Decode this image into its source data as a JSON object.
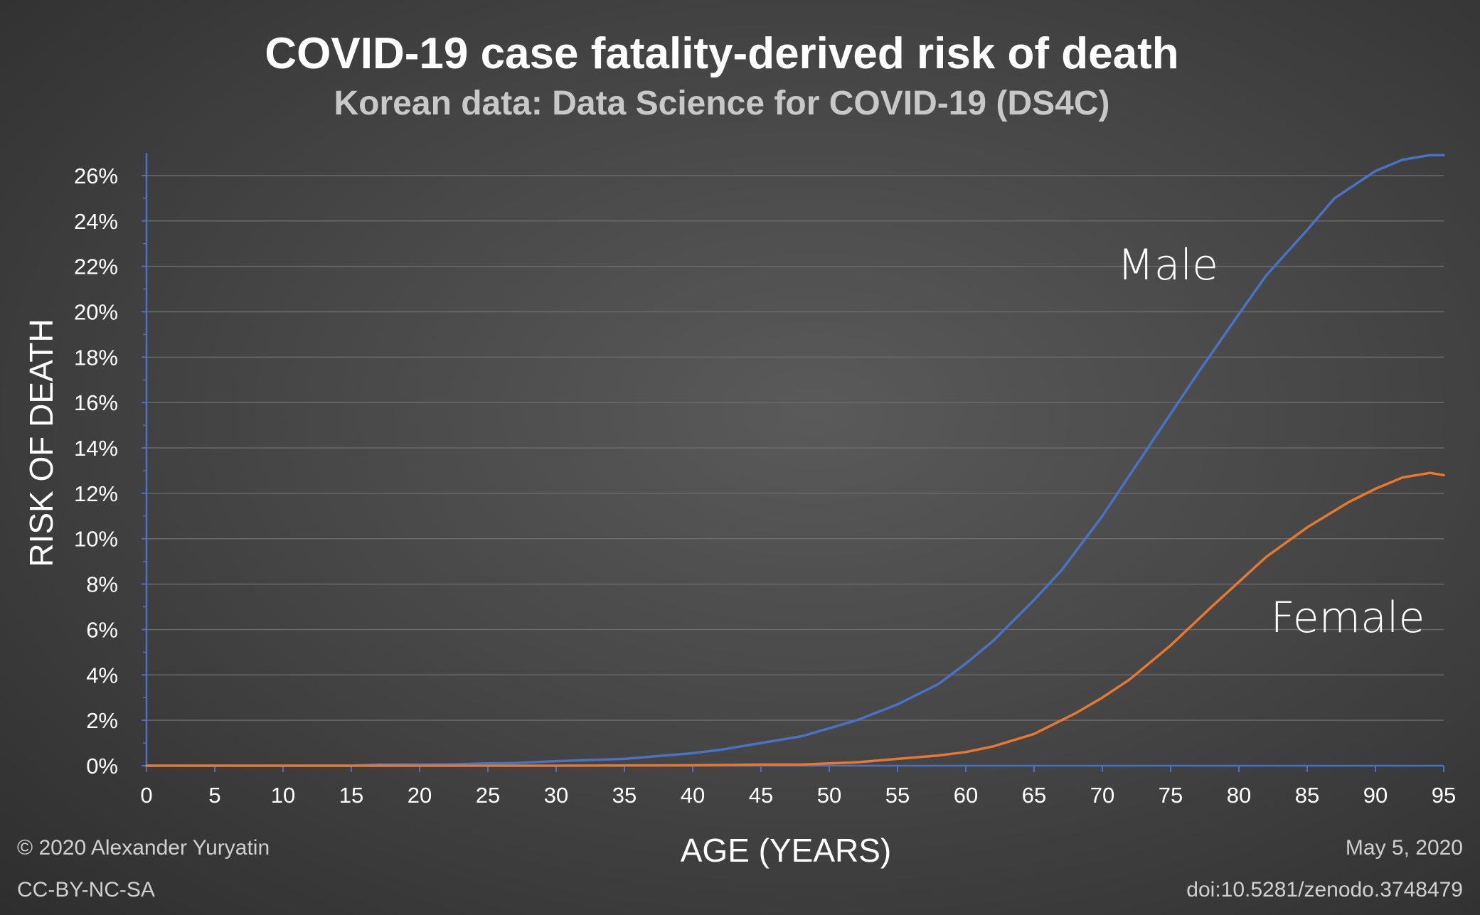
{
  "title": "COVID-19 case fatality-derived risk of death",
  "subtitle": "Korean data: Data Science for COVID-19 (DS4C)",
  "footer": {
    "copyright": "© 2020 Alexander Yuryatin",
    "license": "CC-BY-NC-SA",
    "date": "May 5, 2020",
    "doi": "doi:10.5281/zenodo.3748479"
  },
  "colors": {
    "male": "#4a72c4",
    "female": "#e8782e",
    "axis": "#4a72c4",
    "grid": "#6a6a6a"
  },
  "chart_data": {
    "type": "line",
    "xlabel": "AGE (YEARS)",
    "ylabel": "RISK OF DEATH",
    "xlim": [
      0,
      95
    ],
    "ylim": [
      0,
      27
    ],
    "xticks": [
      "0",
      "5",
      "10",
      "15",
      "20",
      "25",
      "30",
      "35",
      "40",
      "45",
      "50",
      "55",
      "60",
      "65",
      "70",
      "75",
      "80",
      "85",
      "90",
      "95"
    ],
    "yticks": [
      "0%",
      "2%",
      "4%",
      "6%",
      "8%",
      "10%",
      "12%",
      "14%",
      "16%",
      "18%",
      "20%",
      "22%",
      "24%",
      "26%"
    ],
    "grid": true,
    "series": [
      {
        "name": "Male",
        "x": [
          0,
          5,
          10,
          15,
          17,
          20,
          22,
          25,
          27,
          30,
          35,
          40,
          42,
          45,
          48,
          50,
          52,
          55,
          58,
          60,
          62,
          65,
          67,
          70,
          72,
          75,
          77,
          80,
          82,
          85,
          87,
          90,
          92,
          94,
          95
        ],
        "y": [
          0,
          0,
          0,
          0,
          0.05,
          0.05,
          0.06,
          0.1,
          0.12,
          0.2,
          0.3,
          0.55,
          0.7,
          1.0,
          1.3,
          1.65,
          2.0,
          2.7,
          3.6,
          4.5,
          5.5,
          7.3,
          8.6,
          11.0,
          12.8,
          15.5,
          17.3,
          19.9,
          21.6,
          23.6,
          25.0,
          26.2,
          26.7,
          26.9,
          26.9
        ]
      },
      {
        "name": "Female",
        "x": [
          0,
          10,
          20,
          30,
          40,
          45,
          48,
          50,
          52,
          55,
          58,
          60,
          62,
          65,
          68,
          70,
          72,
          75,
          78,
          80,
          82,
          85,
          88,
          90,
          92,
          94,
          95
        ],
        "y": [
          0,
          0,
          0,
          0,
          0.02,
          0.05,
          0.05,
          0.1,
          0.15,
          0.3,
          0.45,
          0.6,
          0.85,
          1.4,
          2.3,
          3.0,
          3.8,
          5.3,
          7.0,
          8.1,
          9.2,
          10.5,
          11.6,
          12.2,
          12.7,
          12.9,
          12.8
        ]
      }
    ]
  }
}
